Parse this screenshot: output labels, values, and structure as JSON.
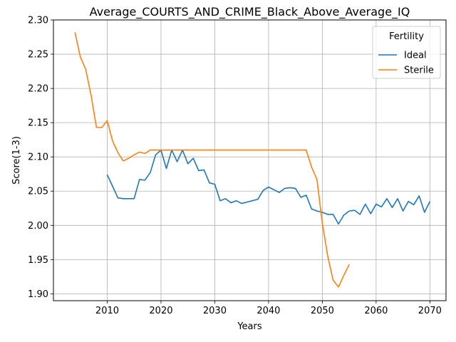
{
  "chart_data": {
    "type": "line",
    "title": "Average_COURTS_AND_CRIME_Black_Above_Average_IQ",
    "xlabel": "Years",
    "ylabel": "Score(1-3)",
    "xlim": [
      2000,
      2073
    ],
    "ylim": [
      1.89,
      2.3
    ],
    "xticks": [
      2010,
      2020,
      2030,
      2040,
      2050,
      2060,
      2070
    ],
    "yticks": [
      1.9,
      1.95,
      2.0,
      2.05,
      2.1,
      2.15,
      2.2,
      2.25,
      2.3
    ],
    "grid": true,
    "legend": {
      "title": "Fertility",
      "placement": "top-right"
    },
    "series": [
      {
        "name": "Ideal",
        "color": "#1f77b4",
        "x": [
          2010,
          2011,
          2012,
          2013,
          2014,
          2015,
          2016,
          2017,
          2018,
          2019,
          2020,
          2021,
          2022,
          2023,
          2024,
          2025,
          2026,
          2027,
          2028,
          2029,
          2030,
          2031,
          2032,
          2033,
          2034,
          2035,
          2036,
          2037,
          2038,
          2039,
          2040,
          2041,
          2042,
          2043,
          2044,
          2045,
          2046,
          2047,
          2048,
          2049,
          2050,
          2051,
          2052,
          2053,
          2054,
          2055,
          2056,
          2057,
          2058,
          2059,
          2060,
          2061,
          2062,
          2063,
          2064,
          2065,
          2066,
          2067,
          2068,
          2069,
          2070
        ],
        "values": [
          2.074,
          2.057,
          2.04,
          2.039,
          2.039,
          2.039,
          2.067,
          2.066,
          2.077,
          2.103,
          2.11,
          2.083,
          2.11,
          2.093,
          2.11,
          2.09,
          2.098,
          2.08,
          2.081,
          2.062,
          2.06,
          2.036,
          2.039,
          2.033,
          2.036,
          2.032,
          2.034,
          2.036,
          2.038,
          2.051,
          2.056,
          2.052,
          2.048,
          2.054,
          2.055,
          2.054,
          2.041,
          2.044,
          2.024,
          2.021,
          2.019,
          2.016,
          2.016,
          2.002,
          2.015,
          2.021,
          2.022,
          2.016,
          2.031,
          2.017,
          2.031,
          2.027,
          2.039,
          2.026,
          2.039,
          2.021,
          2.035,
          2.03,
          2.043,
          2.019,
          2.035
        ]
      },
      {
        "name": "Sterile",
        "color": "#ff7f0e",
        "x": [
          2004,
          2005,
          2006,
          2007,
          2008,
          2009,
          2010,
          2011,
          2012,
          2013,
          2014,
          2015,
          2016,
          2017,
          2018,
          2019,
          2020,
          2021,
          2022,
          2023,
          2024,
          2025,
          2026,
          2027,
          2028,
          2029,
          2030,
          2031,
          2032,
          2033,
          2034,
          2035,
          2036,
          2037,
          2038,
          2039,
          2040,
          2041,
          2042,
          2043,
          2044,
          2045,
          2046,
          2047,
          2048,
          2049,
          2050,
          2051,
          2052,
          2053,
          2054,
          2055
        ],
        "values": [
          2.282,
          2.246,
          2.228,
          2.19,
          2.143,
          2.143,
          2.153,
          2.123,
          2.106,
          2.094,
          2.098,
          2.103,
          2.107,
          2.105,
          2.11,
          2.11,
          2.11,
          2.11,
          2.11,
          2.11,
          2.11,
          2.11,
          2.11,
          2.11,
          2.11,
          2.11,
          2.11,
          2.11,
          2.11,
          2.11,
          2.11,
          2.11,
          2.11,
          2.11,
          2.11,
          2.11,
          2.11,
          2.11,
          2.11,
          2.11,
          2.11,
          2.11,
          2.11,
          2.11,
          2.085,
          2.067,
          2.003,
          1.955,
          1.92,
          1.91,
          1.927,
          1.943
        ]
      }
    ]
  }
}
